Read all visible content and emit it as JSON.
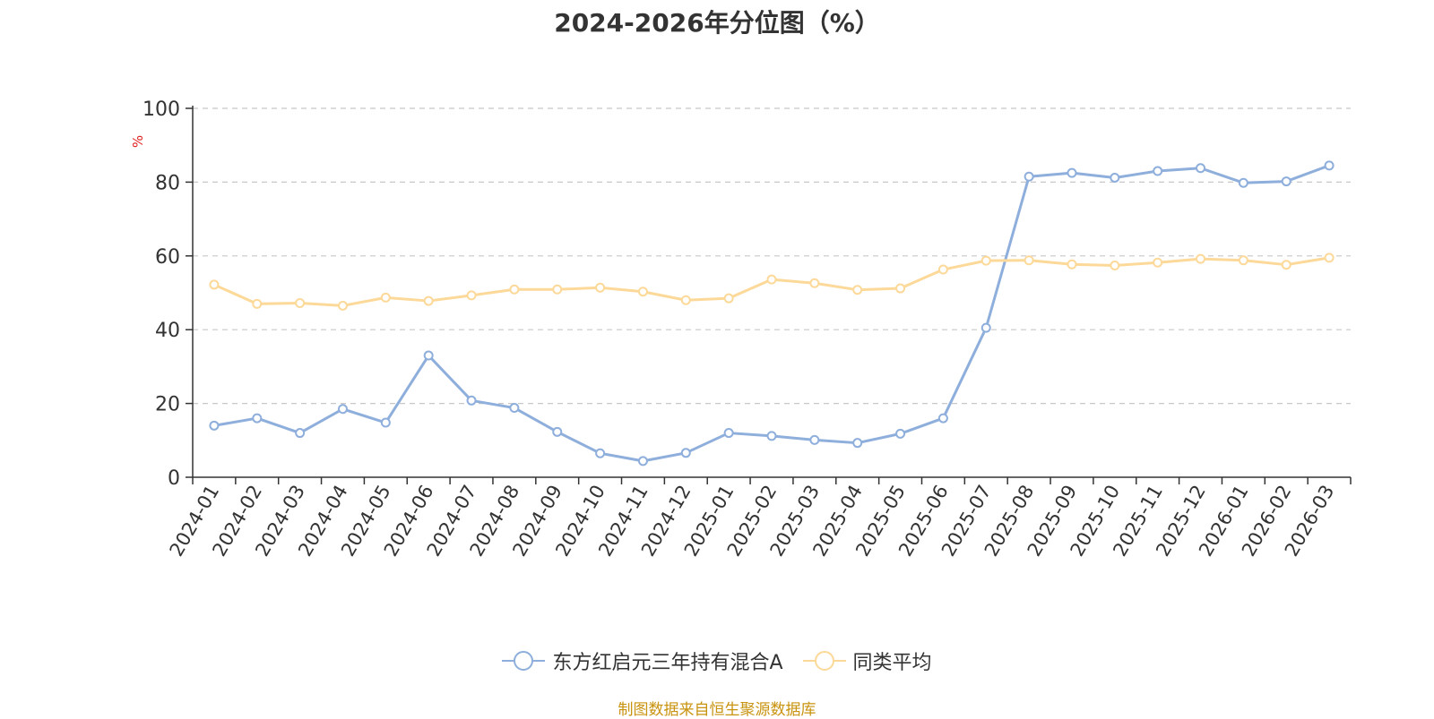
{
  "chart_data": {
    "type": "line",
    "title": "2024-2026年分位图（%）",
    "ylabel": "%",
    "xlabel": "",
    "ylim": [
      0,
      100
    ],
    "yticks": [
      0,
      20,
      40,
      60,
      80,
      100
    ],
    "grid": true,
    "legend_position": "bottom",
    "categories": [
      "2024-01",
      "2024-02",
      "2024-03",
      "2024-04",
      "2024-05",
      "2024-06",
      "2024-07",
      "2024-08",
      "2024-09",
      "2024-10",
      "2024-11",
      "2024-12",
      "2025-01",
      "2025-02",
      "2025-03",
      "2025-04",
      "2025-05",
      "2025-06",
      "2025-07",
      "2025-08",
      "2025-09",
      "2025-10",
      "2025-11",
      "2025-12",
      "2026-01",
      "2026-02",
      "2026-03"
    ],
    "series": [
      {
        "name": "东方红启元三年持有混合A",
        "color": "#8eaedc",
        "values": [
          14,
          16,
          12,
          18.5,
          14.8,
          33,
          20.8,
          18.8,
          12.3,
          6.5,
          4.4,
          6.6,
          12,
          11.2,
          10.1,
          9.3,
          11.8,
          16,
          40.5,
          81.5,
          82.5,
          81.2,
          83,
          83.8,
          79.8,
          80.2,
          84.5
        ]
      },
      {
        "name": "同类平均",
        "color": "#fcd999",
        "values": [
          52.2,
          47,
          47.2,
          46.5,
          48.7,
          47.8,
          49.3,
          50.9,
          50.9,
          51.4,
          50.3,
          48,
          48.5,
          53.6,
          52.6,
          50.8,
          51.2,
          56.3,
          58.7,
          58.8,
          57.7,
          57.4,
          58.2,
          59.2,
          58.8,
          57.6,
          59.5
        ]
      }
    ]
  },
  "source_note": "制图数据来自恒生聚源数据库"
}
